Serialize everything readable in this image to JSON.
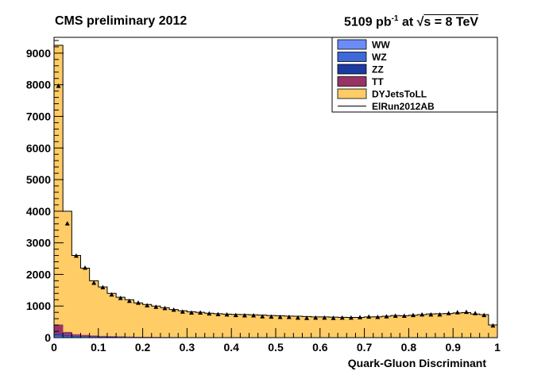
{
  "header": {
    "left": "CMS preliminary 2012",
    "lumi_value": "5109 pb",
    "lumi_exp": "-1",
    "lumi_rest": " at ",
    "sqrt_symbol": "√",
    "energy": "s = 8 TeV"
  },
  "chart_data": {
    "type": "bar",
    "xlabel": "Quark-Gluon Discriminant",
    "ylabel": "",
    "xlim": [
      0,
      1
    ],
    "ylim": [
      0,
      9500
    ],
    "x_ticks": [
      "0",
      "0.1",
      "0.2",
      "0.3",
      "0.4",
      "0.5",
      "0.6",
      "0.7",
      "0.8",
      "0.9",
      "1"
    ],
    "y_ticks": [
      "0",
      "1000",
      "2000",
      "3000",
      "4000",
      "5000",
      "6000",
      "7000",
      "8000",
      "9000"
    ],
    "bin_edges_start": 0,
    "bin_width": 0.02,
    "legend_position": "top-right",
    "legend": [
      {
        "label": "WW",
        "color": "#6a8dfa",
        "kind": "box"
      },
      {
        "label": "WZ",
        "color": "#3f68d8",
        "kind": "box"
      },
      {
        "label": "ZZ",
        "color": "#1d3aa3",
        "kind": "box"
      },
      {
        "label": "TT",
        "color": "#993366",
        "kind": "box"
      },
      {
        "label": "DYJetsToLL",
        "color": "#ffcc66",
        "kind": "box"
      },
      {
        "label": "ElRun2012AB",
        "color": "#000000",
        "kind": "line"
      }
    ],
    "series": [
      {
        "name": "WW",
        "color": "#6a8dfa",
        "values": [
          15,
          10,
          8,
          6,
          5,
          4,
          4,
          3,
          3,
          2,
          2,
          2,
          2,
          1,
          1,
          1,
          1,
          1,
          1,
          1,
          1,
          1,
          1,
          1,
          1,
          1,
          1,
          1,
          1,
          1,
          1,
          1,
          1,
          1,
          1,
          1,
          1,
          1,
          1,
          1,
          1,
          1,
          1,
          1,
          1,
          1,
          1,
          1,
          1,
          1
        ]
      },
      {
        "name": "WZ",
        "color": "#3f68d8",
        "values": [
          40,
          30,
          20,
          15,
          12,
          10,
          8,
          7,
          6,
          5,
          4,
          4,
          3,
          3,
          3,
          2,
          2,
          2,
          2,
          2,
          2,
          2,
          2,
          2,
          2,
          2,
          2,
          2,
          2,
          2,
          2,
          2,
          2,
          2,
          2,
          2,
          2,
          2,
          2,
          2,
          2,
          2,
          2,
          2,
          2,
          2,
          2,
          2,
          2,
          2
        ]
      },
      {
        "name": "ZZ",
        "color": "#1d3aa3",
        "values": [
          60,
          40,
          30,
          25,
          20,
          16,
          14,
          12,
          10,
          8,
          7,
          6,
          5,
          5,
          4,
          4,
          4,
          3,
          3,
          3,
          3,
          3,
          3,
          3,
          3,
          3,
          3,
          3,
          3,
          3,
          3,
          3,
          3,
          3,
          3,
          3,
          3,
          3,
          3,
          3,
          3,
          3,
          3,
          3,
          3,
          3,
          3,
          3,
          3,
          3
        ]
      },
      {
        "name": "TT",
        "color": "#993366",
        "values": [
          300,
          100,
          50,
          40,
          30,
          25,
          20,
          18,
          15,
          12,
          10,
          9,
          8,
          7,
          6,
          6,
          5,
          5,
          5,
          5,
          5,
          5,
          5,
          5,
          5,
          5,
          5,
          5,
          5,
          5,
          5,
          5,
          5,
          5,
          5,
          5,
          5,
          5,
          5,
          5,
          5,
          5,
          5,
          5,
          5,
          5,
          5,
          5,
          5,
          5
        ]
      },
      {
        "name": "DYJetsToLL",
        "color": "#ffcc66",
        "values": [
          8835,
          3820,
          2492,
          2114,
          1733,
          1549,
          1354,
          1240,
          1166,
          1073,
          1027,
          978,
          932,
          874,
          836,
          803,
          788,
          763,
          747,
          735,
          724,
          720,
          713,
          701,
          689,
          683,
          671,
          669,
          658,
          647,
          646,
          639,
          632,
          631,
          630,
          645,
          648,
          667,
          689,
          682,
          698,
          718,
          740,
          746,
          751,
          772,
          780,
          737,
          717,
          390
        ]
      }
    ],
    "data_series": {
      "name": "ElRun2012AB",
      "values": [
        7950,
        3600,
        2580,
        2200,
        1720,
        1580,
        1350,
        1240,
        1150,
        1090,
        1010,
        960,
        920,
        870,
        810,
        780,
        780,
        750,
        730,
        720,
        700,
        690,
        690,
        660,
        650,
        640,
        640,
        620,
        610,
        620,
        620,
        610,
        620,
        620,
        630,
        650,
        640,
        660,
        680,
        680,
        700,
        720,
        720,
        720,
        760,
        790,
        800,
        760,
        700,
        370
      ]
    }
  }
}
